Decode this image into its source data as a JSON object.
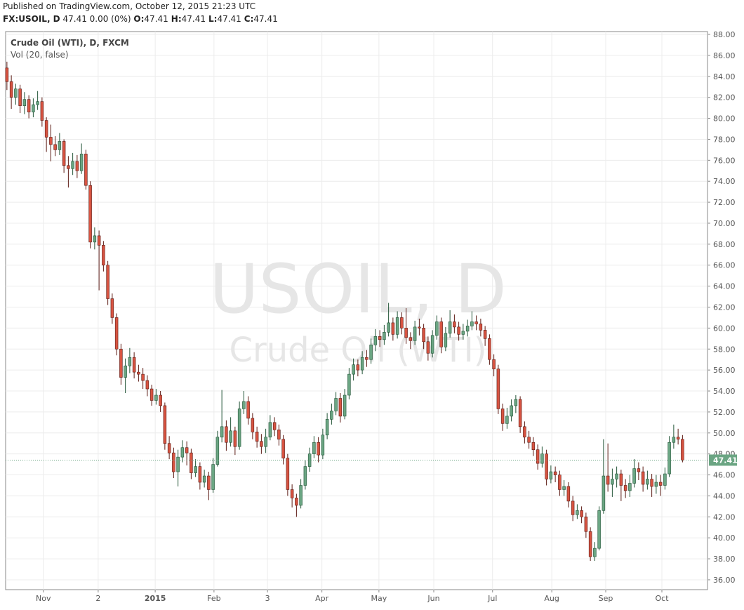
{
  "header": {
    "published": "Published on TradingView.com, October 12, 2015 21:23 UTC",
    "symbol": "FX:USOIL, D",
    "change": "47.41 0.00 (0%)",
    "ohlc": [
      {
        "key": "O:",
        "val": "47.41"
      },
      {
        "key": "H:",
        "val": "47.41"
      },
      {
        "key": "L:",
        "val": "47.41"
      },
      {
        "key": "C:",
        "val": "47.41"
      }
    ]
  },
  "chart_data": {
    "type": "candlestick",
    "legend": [
      "Crude Oil (WTI), D, FXCM",
      "Vol (20, false)"
    ],
    "watermark": [
      "USOIL, D",
      "Crude Oil (WTI)"
    ],
    "up_color": "#6ba583",
    "up_border": "#225437",
    "down_color": "#d75442",
    "down_border": "#5b1a13",
    "grid": true,
    "last_price": 47.41,
    "last_color": "#6ba583",
    "ylim": [
      35.06,
      88.27
    ],
    "yticks": [
      {
        "value": 36,
        "label": "36.00"
      },
      {
        "value": 38,
        "label": "38.00"
      },
      {
        "value": 40,
        "label": "40.00"
      },
      {
        "value": 42,
        "label": "42.00"
      },
      {
        "value": 44,
        "label": "44.00"
      },
      {
        "value": 46,
        "label": "46.00"
      },
      {
        "value": 48,
        "label": "48.00"
      },
      {
        "value": 50,
        "label": "50.00"
      },
      {
        "value": 52,
        "label": "52.00"
      },
      {
        "value": 54,
        "label": "54.00"
      },
      {
        "value": 56,
        "label": "56.00"
      },
      {
        "value": 58,
        "label": "58.00"
      },
      {
        "value": 60,
        "label": "60.00"
      },
      {
        "value": 62,
        "label": "62.00"
      },
      {
        "value": 64,
        "label": "64.00"
      },
      {
        "value": 66,
        "label": "66.00"
      },
      {
        "value": 68,
        "label": "68.00"
      },
      {
        "value": 70,
        "label": "70.00"
      },
      {
        "value": 72,
        "label": "72.00"
      },
      {
        "value": 74,
        "label": "74.00"
      },
      {
        "value": 76,
        "label": "76.00"
      },
      {
        "value": 78,
        "label": "78.00"
      },
      {
        "value": 80,
        "label": "80.00"
      },
      {
        "value": 82,
        "label": "82.00"
      },
      {
        "value": 84,
        "label": "84.00"
      },
      {
        "value": 86,
        "label": "86.00"
      },
      {
        "value": 88,
        "label": "88.00"
      }
    ],
    "xlim": [
      -0.3,
      159.7
    ],
    "xticks": [
      {
        "value": 8.3,
        "label": "Nov"
      },
      {
        "value": 20.8,
        "label": "2"
      },
      {
        "value": 33.8,
        "label": "2015"
      },
      {
        "value": 47.2,
        "label": "Feb"
      },
      {
        "value": 59.4,
        "label": "3"
      },
      {
        "value": 71.8,
        "label": "Apr"
      },
      {
        "value": 84.8,
        "label": "May"
      },
      {
        "value": 97.3,
        "label": "Jun"
      },
      {
        "value": 110.7,
        "label": "Jul"
      },
      {
        "value": 124.2,
        "label": "Aug"
      },
      {
        "value": 136.5,
        "label": "Sep"
      },
      {
        "value": 149.3,
        "label": "Oct"
      }
    ],
    "open": [
      84.8,
      83.5,
      82.0,
      82.8,
      81.2,
      81.8,
      80.6,
      81.3,
      81.6,
      79.8,
      78.2,
      77.5,
      77.0,
      77.8,
      75.5,
      75.2,
      75.9,
      75.0,
      76.6,
      73.6,
      68.2,
      68.8,
      67.9,
      66.0,
      62.8,
      61.0,
      58.0,
      55.3,
      56.4,
      57.2,
      55.8,
      55.6,
      55.0,
      54.2,
      53.1,
      53.6,
      52.6,
      49.0,
      48.1,
      46.3,
      47.7,
      48.6,
      48.1,
      46.2,
      46.8,
      45.3,
      45.9,
      44.6,
      47.0,
      49.6,
      50.6,
      49.1,
      50.2,
      48.7,
      52.3,
      53.0,
      51.4,
      50.1,
      49.2,
      48.7,
      49.6,
      51.0,
      50.3,
      49.4,
      47.6,
      44.6,
      43.8,
      43.1,
      45.0,
      46.8,
      48.0,
      49.1,
      47.9,
      49.8,
      51.3,
      52.1,
      53.3,
      51.6,
      53.6,
      55.6,
      56.5,
      56.0,
      57.2,
      57.0,
      58.4,
      59.2,
      58.9,
      59.6,
      60.5,
      59.4,
      61.0,
      60.0,
      59.1,
      58.8,
      60.1,
      60.0,
      58.7,
      57.6,
      59.3,
      60.6,
      58.2,
      59.5,
      60.6,
      60.1,
      59.4,
      59.7,
      60.2,
      60.6,
      60.4,
      59.8,
      59.0,
      57.0,
      56.1,
      52.3,
      50.9,
      51.6,
      52.6,
      53.2,
      50.6,
      49.6,
      49.1,
      48.4,
      47.1,
      48.0,
      45.6,
      46.3,
      46.0,
      44.6,
      44.9,
      43.5,
      42.2,
      42.6,
      42.0,
      40.6,
      38.2,
      39.0,
      42.6,
      45.9,
      45.1,
      45.6,
      46.1,
      45.0,
      44.5,
      45.2,
      46.6,
      46.3,
      45.1,
      45.6,
      44.9,
      45.3,
      45.0,
      46.1,
      49.1,
      49.6,
      49.4
    ],
    "high": [
      85.4,
      84.1,
      83.3,
      83.2,
      82.5,
      82.2,
      81.9,
      82.6,
      82.0,
      80.1,
      79.4,
      78.3,
      78.6,
      78.0,
      76.4,
      76.7,
      76.5,
      77.6,
      77.0,
      74.0,
      69.6,
      69.3,
      68.3,
      66.4,
      63.3,
      61.4,
      58.5,
      57.1,
      58.1,
      57.7,
      56.5,
      56.2,
      55.5,
      54.6,
      54.2,
      54.0,
      52.9,
      49.7,
      48.6,
      48.4,
      49.3,
      49.2,
      48.5,
      47.5,
      47.2,
      46.5,
      46.3,
      47.6,
      50.2,
      54.1,
      51.2,
      51.5,
      50.6,
      53.0,
      54.0,
      53.5,
      51.9,
      50.6,
      49.9,
      50.4,
      51.7,
      51.5,
      50.8,
      49.8,
      48.0,
      45.1,
      44.2,
      45.6,
      47.4,
      48.6,
      49.7,
      49.6,
      50.4,
      51.9,
      52.8,
      53.9,
      53.8,
      54.2,
      56.2,
      57.1,
      57.0,
      57.8,
      57.9,
      59.0,
      59.9,
      59.8,
      60.3,
      62.4,
      61.0,
      61.6,
      61.5,
      61.9,
      59.6,
      60.7,
      60.9,
      60.4,
      59.2,
      59.8,
      61.2,
      61.0,
      60.1,
      61.7,
      61.3,
      60.6,
      60.4,
      60.8,
      61.6,
      61.2,
      60.9,
      60.2,
      59.4,
      57.5,
      56.5,
      52.8,
      52.4,
      53.2,
      53.6,
      53.5,
      51.1,
      50.2,
      49.6,
      48.9,
      48.7,
      48.4,
      46.9,
      46.8,
      46.4,
      45.5,
      45.3,
      44.0,
      43.2,
      43.0,
      42.4,
      41.0,
      39.6,
      43.0,
      49.4,
      49.0,
      46.6,
      46.8,
      46.5,
      45.6,
      46.0,
      47.5,
      47.2,
      46.8,
      46.4,
      46.1,
      46.0,
      46.0,
      46.7,
      49.7,
      50.8,
      50.4,
      49.8
    ],
    "low": [
      82.7,
      80.9,
      81.3,
      80.5,
      80.4,
      80.0,
      80.1,
      80.8,
      79.2,
      76.8,
      75.9,
      76.4,
      76.5,
      74.8,
      73.4,
      74.6,
      74.3,
      74.7,
      73.2,
      67.6,
      67.5,
      63.6,
      65.4,
      62.2,
      60.4,
      57.4,
      54.6,
      53.8,
      55.7,
      55.2,
      54.9,
      54.2,
      53.5,
      52.6,
      52.7,
      52.0,
      48.4,
      47.5,
      45.7,
      44.9,
      47.2,
      46.9,
      45.6,
      45.8,
      44.6,
      44.8,
      43.6,
      44.3,
      46.8,
      49.1,
      48.3,
      48.7,
      47.9,
      48.4,
      51.8,
      50.8,
      49.4,
      48.6,
      48.0,
      48.1,
      49.3,
      49.7,
      48.8,
      47.0,
      44.0,
      42.9,
      42.0,
      42.8,
      44.6,
      46.3,
      47.6,
      47.2,
      47.5,
      49.4,
      50.8,
      51.7,
      51.0,
      51.3,
      53.2,
      55.0,
      55.4,
      55.6,
      56.3,
      56.6,
      57.8,
      58.2,
      58.4,
      59.2,
      58.8,
      59.0,
      59.4,
      58.5,
      58.0,
      58.4,
      59.3,
      58.0,
      56.9,
      57.2,
      58.9,
      57.6,
      57.8,
      59.1,
      59.5,
      58.8,
      58.9,
      59.2,
      59.8,
      59.8,
      59.2,
      58.3,
      56.5,
      55.4,
      51.8,
      50.2,
      50.4,
      51.1,
      51.9,
      50.0,
      49.0,
      48.5,
      47.8,
      46.5,
      46.7,
      45.0,
      45.2,
      45.3,
      44.0,
      44.0,
      42.9,
      41.6,
      41.8,
      41.4,
      40.0,
      37.8,
      37.8,
      38.8,
      42.3,
      44.4,
      43.9,
      44.8,
      43.5,
      43.8,
      43.9,
      44.8,
      45.5,
      44.4,
      44.6,
      43.9,
      44.2,
      44.0,
      44.6,
      45.8,
      48.5,
      48.9,
      47.2
    ],
    "close": [
      83.5,
      82.0,
      82.8,
      81.2,
      81.8,
      80.6,
      81.3,
      81.6,
      79.8,
      78.2,
      77.5,
      77.0,
      77.8,
      75.5,
      75.2,
      75.9,
      75.0,
      76.6,
      73.6,
      68.2,
      68.8,
      67.9,
      66.0,
      62.8,
      61.0,
      58.0,
      55.3,
      56.4,
      57.2,
      55.8,
      55.6,
      55.0,
      54.2,
      53.1,
      53.6,
      52.6,
      49.0,
      48.1,
      46.3,
      47.7,
      48.6,
      48.1,
      46.2,
      46.8,
      45.3,
      45.9,
      44.6,
      47.0,
      49.6,
      50.6,
      49.1,
      50.2,
      48.7,
      52.3,
      53.0,
      51.4,
      50.1,
      49.2,
      48.7,
      49.6,
      51.0,
      50.3,
      49.4,
      47.6,
      44.6,
      43.8,
      43.1,
      45.0,
      46.8,
      48.0,
      49.1,
      47.9,
      49.8,
      51.3,
      52.1,
      53.3,
      51.6,
      53.6,
      55.6,
      56.5,
      56.0,
      57.2,
      57.0,
      58.4,
      59.2,
      58.9,
      59.6,
      60.5,
      59.4,
      61.0,
      60.0,
      59.1,
      58.8,
      60.1,
      60.0,
      58.7,
      57.6,
      59.3,
      60.6,
      58.2,
      59.5,
      60.6,
      60.1,
      59.4,
      59.7,
      60.2,
      60.6,
      60.4,
      59.8,
      59.0,
      57.0,
      56.1,
      52.3,
      50.9,
      51.6,
      52.6,
      53.2,
      50.6,
      49.6,
      49.1,
      48.4,
      47.1,
      48.0,
      45.6,
      46.3,
      46.0,
      44.6,
      44.9,
      43.5,
      42.2,
      42.6,
      42.0,
      40.6,
      38.2,
      39.0,
      42.6,
      45.9,
      45.1,
      45.6,
      46.1,
      45.0,
      44.5,
      45.2,
      46.6,
      46.3,
      45.1,
      45.6,
      44.9,
      45.3,
      45.0,
      46.1,
      49.1,
      49.6,
      49.4,
      47.41
    ]
  }
}
